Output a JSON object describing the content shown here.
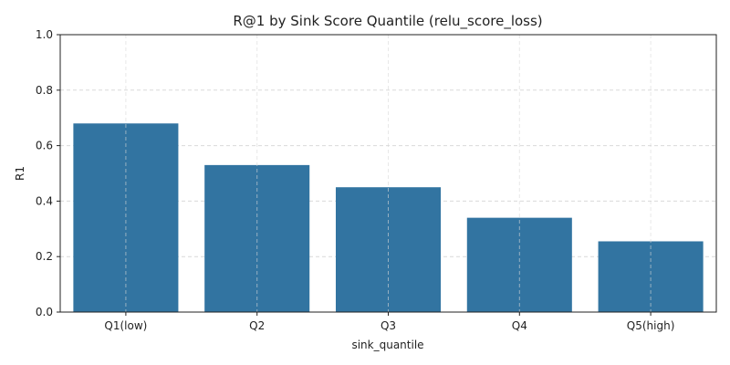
{
  "chart_data": {
    "type": "bar",
    "title": "R@1 by Sink Score Quantile (relu_score_loss)",
    "xlabel": "sink_quantile",
    "ylabel": "R1",
    "categories": [
      "Q1(low)",
      "Q2",
      "Q3",
      "Q4",
      "Q5(high)"
    ],
    "values": [
      0.68,
      0.53,
      0.45,
      0.34,
      0.255
    ],
    "ylim": [
      0,
      1.0
    ],
    "yticks": [
      "0.0",
      "0.2",
      "0.4",
      "0.6",
      "0.8",
      "1.0"
    ],
    "grid": true,
    "bar_color": "#3274a1"
  }
}
